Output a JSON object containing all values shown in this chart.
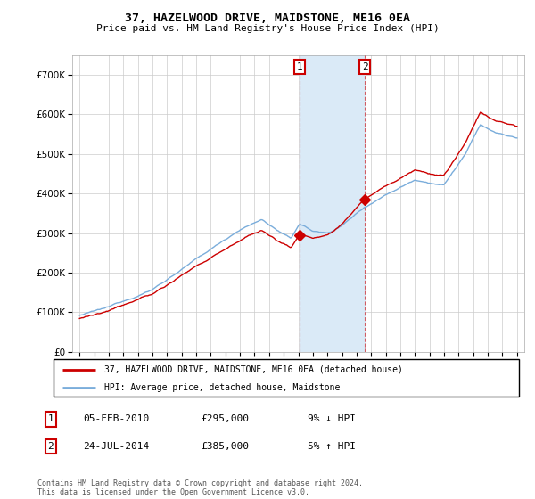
{
  "title": "37, HAZELWOOD DRIVE, MAIDSTONE, ME16 0EA",
  "subtitle": "Price paid vs. HM Land Registry's House Price Index (HPI)",
  "legend_line1": "37, HAZELWOOD DRIVE, MAIDSTONE, ME16 0EA (detached house)",
  "legend_line2": "HPI: Average price, detached house, Maidstone",
  "annotation1_label": "1",
  "annotation1_date": "05-FEB-2010",
  "annotation1_price": "£295,000",
  "annotation1_hpi": "9% ↓ HPI",
  "annotation2_label": "2",
  "annotation2_date": "24-JUL-2014",
  "annotation2_price": "£385,000",
  "annotation2_hpi": "5% ↑ HPI",
  "footer": "Contains HM Land Registry data © Crown copyright and database right 2024.\nThis data is licensed under the Open Government Licence v3.0.",
  "red_color": "#cc0000",
  "blue_color": "#7aaddb",
  "shade_color": "#daeaf7",
  "point1_x": 2010.09,
  "point1_y": 295000,
  "point2_x": 2014.56,
  "point2_y": 385000,
  "ylim": [
    0,
    750000
  ],
  "xlim": [
    1994.5,
    2025.5
  ],
  "yticks": [
    0,
    100000,
    200000,
    300000,
    400000,
    500000,
    600000,
    700000
  ],
  "xticks": [
    1995,
    1996,
    1997,
    1998,
    1999,
    2000,
    2001,
    2002,
    2003,
    2004,
    2005,
    2006,
    2007,
    2008,
    2009,
    2010,
    2011,
    2012,
    2013,
    2014,
    2015,
    2016,
    2017,
    2018,
    2019,
    2020,
    2021,
    2022,
    2023,
    2024,
    2025
  ]
}
